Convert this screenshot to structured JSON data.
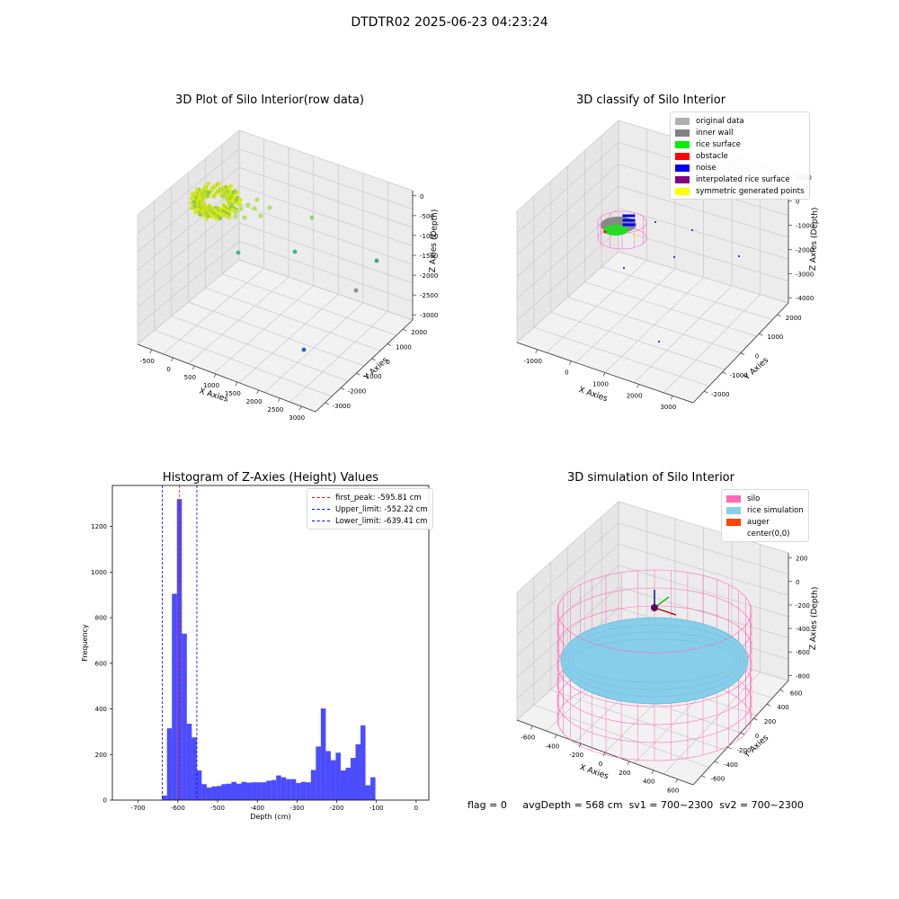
{
  "figure": {
    "suptitle": "DTDTR02 2025-06-23 04:23:24"
  },
  "panel_raw": {
    "title": "3D Plot of Silo Interior(row data)",
    "xlabel": "X Axies",
    "ylabel": "Y Axies",
    "zlabel": "Z Axies (Depth)",
    "xticks": [
      "-500",
      "0",
      "500",
      "1000",
      "1500",
      "2000",
      "2500",
      "3000"
    ],
    "yticks": [
      "-3000",
      "-2000",
      "-1000",
      "0",
      "1000",
      "2000"
    ],
    "zticks": [
      "0",
      "-500",
      "-1000",
      "-1500",
      "-2000",
      "-2500",
      "-3000"
    ]
  },
  "panel_classify": {
    "title": "3D classify of Silo Interior",
    "xlabel": "X Axies",
    "ylabel": "Y Axies",
    "zlabel": "Z Axies (Depth)",
    "xticks": [
      "-1000",
      "0",
      "1000",
      "2000",
      "3000"
    ],
    "yticks": [
      "-2000",
      "-1000",
      "0",
      "1000",
      "2000"
    ],
    "zticks": [
      "1000",
      "0",
      "-1000",
      "-2000",
      "-3000",
      "-4000"
    ],
    "legend": [
      {
        "label": "original data",
        "color": "#b0b0b0"
      },
      {
        "label": "inner wall",
        "color": "#808080"
      },
      {
        "label": "rice surface",
        "color": "#00ee00"
      },
      {
        "label": "obstacle",
        "color": "#ff0000"
      },
      {
        "label": "noise",
        "color": "#0000ee"
      },
      {
        "label": "interpolated rice surface",
        "color": "#800080"
      },
      {
        "label": "symmetric generated points",
        "color": "#ffff00"
      }
    ]
  },
  "panel_sim": {
    "title": "3D simulation of Silo Interior",
    "xlabel": "X Axies",
    "ylabel": "Y Axies",
    "zlabel": "Z Axies (Depth)",
    "xticks": [
      "-600",
      "-400",
      "-200",
      "0",
      "200",
      "400",
      "600"
    ],
    "yticks": [
      "-600",
      "-400",
      "-200",
      "0",
      "200",
      "400",
      "600"
    ],
    "zticks": [
      "200",
      "0",
      "-200",
      "-400",
      "-600",
      "-800"
    ],
    "legend": [
      {
        "label": "silo",
        "color": "#ff69b4"
      },
      {
        "label": "rice simulation",
        "color": "#87ceeb"
      },
      {
        "label": "auger",
        "color": "#ff4500"
      },
      {
        "label": "center(0,0)",
        "color": ""
      }
    ]
  },
  "footer": {
    "flag": "flag = 0",
    "avg": "avgDepth = 568 cm",
    "sv1": "sv1 = 700~2300",
    "sv2": "sv2 = 700~2300"
  },
  "chart_data": [
    {
      "type": "scatter",
      "title": "3D Plot of Silo Interior(row data)",
      "xlabel": "X Axies",
      "ylabel": "Y Axies",
      "zlabel": "Z Axies (Depth)",
      "xlim": [
        -700,
        3000
      ],
      "ylim": [
        -3000,
        2400
      ],
      "zlim": [
        -3200,
        100
      ],
      "grid": true,
      "series": [
        {
          "points": [
            [
              3000,
              2000,
              -500
            ],
            [
              2600,
              1200,
              -2200
            ],
            [
              2300,
              500,
              -3000
            ],
            [
              2000,
              -500,
              -2200
            ],
            [
              1300,
              -1800,
              -2100
            ],
            [
              1900,
              -2700,
              -2900
            ]
          ]
        }
      ]
    },
    {
      "type": "scatter",
      "title": "3D classify of Silo Interior",
      "xlabel": "X Axies",
      "ylabel": "Y Axies",
      "zlabel": "Z Axies (Depth)",
      "xlim": [
        -1500,
        3700
      ],
      "ylim": [
        -2300,
        2300
      ],
      "zlim": [
        -4000,
        1000
      ],
      "grid": true,
      "series": [
        {
          "name": "original data"
        },
        {
          "name": "inner wall"
        },
        {
          "name": "rice surface"
        },
        {
          "name": "obstacle"
        },
        {
          "name": "noise"
        },
        {
          "name": "interpolated rice surface"
        },
        {
          "name": "symmetric generated points"
        }
      ]
    },
    {
      "type": "bar",
      "title": "Histogram of Z-Axies (Height) Values",
      "xlabel": "Depth (cm)",
      "ylabel": "Frequency",
      "xlim": [
        -765,
        32
      ],
      "ylim": [
        0,
        1380
      ],
      "xticks": [
        -700,
        -600,
        -500,
        -400,
        -300,
        -200,
        -100,
        0
      ],
      "yticks": [
        0,
        200,
        400,
        600,
        800,
        1000,
        1200
      ],
      "bin_start": -640,
      "bin_width": 12.5,
      "values": [
        20,
        315,
        905,
        1320,
        730,
        335,
        275,
        130,
        70,
        55,
        60,
        62,
        70,
        72,
        80,
        72,
        80,
        77,
        78,
        78,
        78,
        85,
        88,
        108,
        100,
        92,
        92,
        75,
        80,
        78,
        132,
        235,
        402,
        215,
        175,
        208,
        130,
        142,
        185,
        245,
        328,
        65,
        100
      ],
      "bar_color": "#0000ff",
      "lines": [
        {
          "label": "first_peak: -595.81 cm",
          "x": -595.81,
          "color": "#ff0000"
        },
        {
          "label": "Upper_limit: -552.22 cm",
          "x": -552.22,
          "color": "#0000ff"
        },
        {
          "label": "Lower_limit: -639.41 cm",
          "x": -639.41,
          "color": "#0000ff"
        }
      ],
      "legend_position": "top-right"
    },
    {
      "type": "surface",
      "title": "3D simulation of Silo Interior",
      "xlabel": "X Axies",
      "ylabel": "Y Axies",
      "zlabel": "Z Axies (Depth)",
      "xlim": [
        -600,
        600
      ],
      "ylim": [
        -600,
        600
      ],
      "zlim": [
        -900,
        300
      ],
      "grid": true,
      "series": [
        {
          "name": "silo"
        },
        {
          "name": "rice simulation"
        },
        {
          "name": "auger"
        },
        {
          "name": "center(0,0)"
        }
      ]
    }
  ]
}
